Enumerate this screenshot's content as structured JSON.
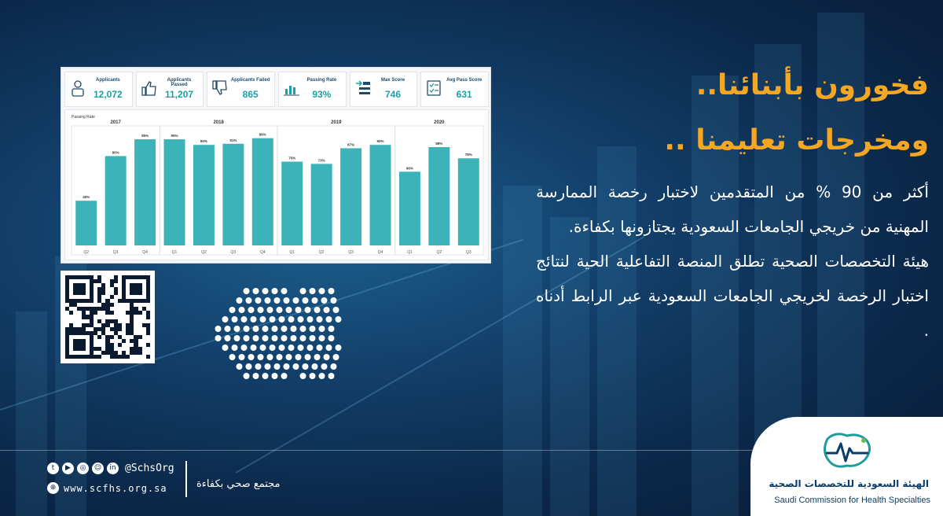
{
  "headline": {
    "line1": "فخورون بأبنائنا..",
    "line2": "ومخرجات تعليمنا .."
  },
  "body": {
    "paragraph1": "أكثر من 90 % من المتقدمين لاختبار رخصة الممارسة المهنية من خريجي الجامعات السعودية يجتازونها بكفاءة.",
    "paragraph2": "هيئة التخصصات الصحية تطلق المنصة التفاعلية الحية لنتائج اختبار الرخصة لخريجي الجامعات السعودية عبر الرابط أدناه ."
  },
  "dashboard": {
    "kpis": [
      {
        "label": "Applicants",
        "value": "12,072",
        "icon": "applicants-icon"
      },
      {
        "label": "Applicants Passed",
        "value": "11,207",
        "icon": "thumbs-up-icon"
      },
      {
        "label": "Applicants Failed",
        "value": "865",
        "icon": "thumbs-down-icon"
      },
      {
        "label": "Passing Rate",
        "value": "93%",
        "icon": "bar-chart-icon"
      },
      {
        "label": "Max Score",
        "value": "746",
        "icon": "list-arrow-icon"
      },
      {
        "label": "Avg Pass Score",
        "value": "631",
        "icon": "checklist-icon"
      }
    ]
  },
  "chart_data": {
    "type": "bar",
    "title": "Passing Rate",
    "years": [
      "2017",
      "2018",
      "2019",
      "2020"
    ],
    "categories": [
      "Q2",
      "Q3",
      "Q4",
      "Q1",
      "Q2",
      "Q3",
      "Q4",
      "Q1",
      "Q2",
      "Q3",
      "Q4",
      "Q1",
      "Q2",
      "Q3"
    ],
    "year_of_category": [
      "2017",
      "2017",
      "2017",
      "2018",
      "2018",
      "2018",
      "2018",
      "2019",
      "2019",
      "2019",
      "2019",
      "2020",
      "2020",
      "2020"
    ],
    "values": [
      40,
      80,
      95,
      95,
      90,
      91,
      96,
      75,
      73,
      87,
      90,
      66,
      88,
      78
    ],
    "value_labels": [
      "40%",
      "80%",
      "95%",
      "95%",
      "90%",
      "91%",
      "96%",
      "75%",
      "73%",
      "87%",
      "90%",
      "66%",
      "88%",
      "78%"
    ],
    "ylim": [
      0,
      100
    ],
    "bar_color": "#3bb3b8"
  },
  "footer": {
    "social_icons": [
      "twitter-icon",
      "youtube-icon",
      "instagram-icon",
      "snapchat-icon",
      "linkedin-icon"
    ],
    "handle": "@SchsOrg",
    "website": "www.scfhs.org.sa",
    "slogan": "مجتمع صحي بكفاءة"
  },
  "logo": {
    "arabic": "الهيئة السعودية للتخصصات الصحية",
    "english": "Saudi Commission for Health Specialties"
  },
  "colors": {
    "accent": "#f5a623",
    "teal": "#17a2a8",
    "background": "#0b2748"
  }
}
